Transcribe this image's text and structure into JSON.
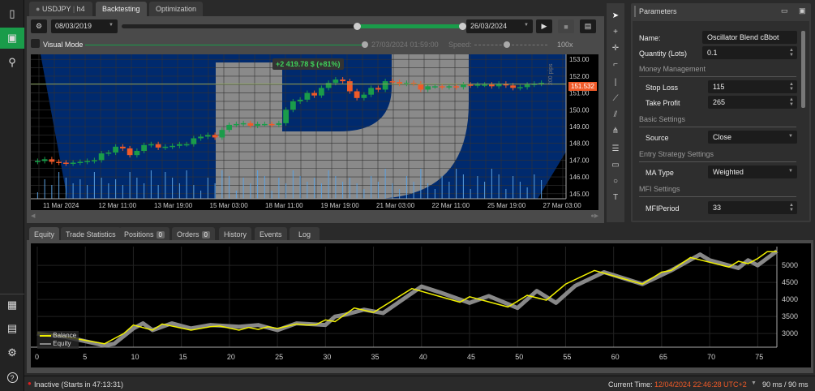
{
  "sidebar": {
    "items": [
      {
        "icon": "candlestick-icon"
      },
      {
        "icon": "robot-icon",
        "active": true
      },
      {
        "icon": "search-analysis-icon"
      },
      {
        "icon": "calculator-icon"
      },
      {
        "icon": "wallet-icon"
      },
      {
        "icon": "gear-icon"
      },
      {
        "icon": "help-icon",
        "glyph": "?"
      }
    ]
  },
  "tabs": {
    "symbol": "USDJPY",
    "timeframe": "h4",
    "backtesting": "Backtesting",
    "optimization": "Optimization"
  },
  "toolbar": {
    "start_date": "08/03/2019",
    "end_date": "26/03/2024",
    "range_progress": [
      0.69,
      1.0
    ],
    "visual_mode": "Visual Mode",
    "visual_time": "27/03/2024 01:59:00",
    "speed_label": "Speed:",
    "speed_value": "100x",
    "speed_level": 0.5
  },
  "chart": {
    "overlay": "+2 419.78 $ (+81%)",
    "current_price": "151.532",
    "pips_label": "200 pips",
    "accent_up": "#1a9c4a",
    "accent_down": "#f05a28",
    "price_ticks": [
      "153.00",
      "152.00",
      "151.00",
      "150.00",
      "149.00",
      "148.00",
      "147.00",
      "146.00",
      "145.00"
    ],
    "time_ticks": [
      "11 Mar 2024",
      "12 Mar 11:00",
      "13 Mar 19:00",
      "15 Mar 03:00",
      "18 Mar 11:00",
      "19 Mar 19:00",
      "21 Mar 03:00",
      "22 Mar 11:00",
      "25 Mar 19:00",
      "27 Mar 03:00"
    ],
    "closes": [
      146.95,
      147.05,
      146.9,
      146.85,
      146.8,
      146.85,
      146.9,
      146.95,
      147.0,
      147.4,
      147.45,
      147.8,
      147.7,
      147.3,
      147.55,
      147.9,
      147.95,
      147.75,
      147.8,
      147.85,
      147.95,
      147.95,
      148.3,
      148.4,
      148.5,
      148.35,
      148.8,
      149.1,
      149.15,
      149.2,
      149.05,
      149.15,
      149.15,
      149.1,
      149.2,
      150.0,
      150.5,
      150.6,
      151.0,
      150.85,
      151.3,
      151.6,
      151.8,
      151.7,
      151.1,
      150.7,
      150.9,
      151.3,
      151.2,
      151.7,
      151.65,
      151.55,
      151.6,
      151.55,
      151.2,
      151.4,
      151.4,
      151.35,
      151.4,
      151.35,
      151.5,
      151.45,
      151.5,
      151.5,
      151.4,
      151.55,
      151.45,
      151.3,
      151.35,
      151.5,
      151.55,
      151.6
    ]
  },
  "parameters": {
    "title": "Parameters",
    "name_label": "Name:",
    "name_value": "Oscillator Blend cBbot",
    "qty_label": "Quantity (Lots)",
    "qty_value": "0.1",
    "money_mgmt": "Money Management",
    "sl_label": "Stop Loss",
    "sl_value": "115",
    "tp_label": "Take Profit",
    "tp_value": "265",
    "basic": "Basic Settings",
    "source_label": "Source",
    "source_value": "Close",
    "entry": "Entry Strategy Settings",
    "ma_label": "MA Type",
    "ma_value": "Weighted",
    "mfi": "MFI Settings",
    "mfi_label": "MFIPeriod",
    "mfi_value": "33"
  },
  "bottom_tabs": {
    "equity": "Equity",
    "trade_stats": "Trade Statistics",
    "positions": "Positions",
    "positions_count": "0",
    "orders": "Orders",
    "orders_count": "0",
    "history": "History",
    "events": "Events",
    "log": "Log"
  },
  "chart_data": {
    "type": "line",
    "xlim": [
      0,
      77
    ],
    "ylim": [
      2600,
      5550
    ],
    "grid": true,
    "legend": "bottom-left",
    "x_ticks": [
      "0",
      "5",
      "10",
      "15",
      "20",
      "25",
      "30",
      "35",
      "40",
      "45",
      "50",
      "55",
      "60",
      "65",
      "70",
      "75"
    ],
    "y_ticks": [
      "3000",
      "3500",
      "4000",
      "4500",
      "5000"
    ],
    "series": [
      {
        "name": "Balance",
        "color": "#f0f000",
        "points": [
          [
            0,
            3020
          ],
          [
            2,
            2950
          ],
          [
            7,
            2700
          ],
          [
            9,
            3000
          ],
          [
            10,
            3250
          ],
          [
            12,
            3100
          ],
          [
            13,
            3280
          ],
          [
            16,
            3100
          ],
          [
            18,
            3200
          ],
          [
            19,
            3220
          ],
          [
            21,
            3100
          ],
          [
            22,
            3180
          ],
          [
            23,
            3120
          ],
          [
            24,
            3200
          ],
          [
            25,
            3150
          ],
          [
            27,
            3280
          ],
          [
            28,
            3250
          ],
          [
            29,
            3260
          ],
          [
            30,
            3400
          ],
          [
            31,
            3350
          ],
          [
            33,
            3750
          ],
          [
            35,
            3620
          ],
          [
            39,
            4320
          ],
          [
            44,
            3920
          ],
          [
            45,
            4080
          ],
          [
            49,
            3780
          ],
          [
            51,
            4120
          ],
          [
            53,
            3980
          ],
          [
            55,
            4450
          ],
          [
            58,
            4850
          ],
          [
            63,
            4450
          ],
          [
            65,
            4800
          ],
          [
            66,
            4850
          ],
          [
            68,
            5230
          ],
          [
            72,
            4950
          ],
          [
            73,
            5120
          ],
          [
            74,
            5050
          ],
          [
            75,
            5200
          ],
          [
            76,
            5400
          ],
          [
            77,
            5400
          ]
        ]
      },
      {
        "name": "Equity",
        "color": "#888888",
        "points": [
          [
            0,
            3000
          ],
          [
            3,
            2900
          ],
          [
            7,
            2650
          ],
          [
            8,
            2700
          ],
          [
            10,
            3150
          ],
          [
            11,
            3300
          ],
          [
            12,
            3100
          ],
          [
            14,
            3300
          ],
          [
            16,
            3150
          ],
          [
            18,
            3250
          ],
          [
            21,
            3200
          ],
          [
            23,
            3250
          ],
          [
            25,
            3100
          ],
          [
            27,
            3300
          ],
          [
            30,
            3250
          ],
          [
            31,
            3500
          ],
          [
            32,
            3550
          ],
          [
            34,
            3700
          ],
          [
            36,
            3600
          ],
          [
            40,
            4380
          ],
          [
            42,
            4200
          ],
          [
            45,
            3900
          ],
          [
            47,
            4100
          ],
          [
            50,
            3750
          ],
          [
            52,
            4250
          ],
          [
            54,
            3900
          ],
          [
            56,
            4400
          ],
          [
            59,
            4800
          ],
          [
            63,
            4450
          ],
          [
            66,
            4850
          ],
          [
            69,
            5320
          ],
          [
            70,
            5150
          ],
          [
            73,
            4920
          ],
          [
            74,
            5150
          ],
          [
            75,
            5000
          ],
          [
            77,
            5420
          ]
        ]
      }
    ]
  },
  "status": {
    "state": "Inactive (Starts in 47:13:31)",
    "time_label": "Current Time:",
    "time_value": "12/04/2024 22:46:28",
    "tz": "UTC+2",
    "latency": "90 ms / 90 ms"
  }
}
